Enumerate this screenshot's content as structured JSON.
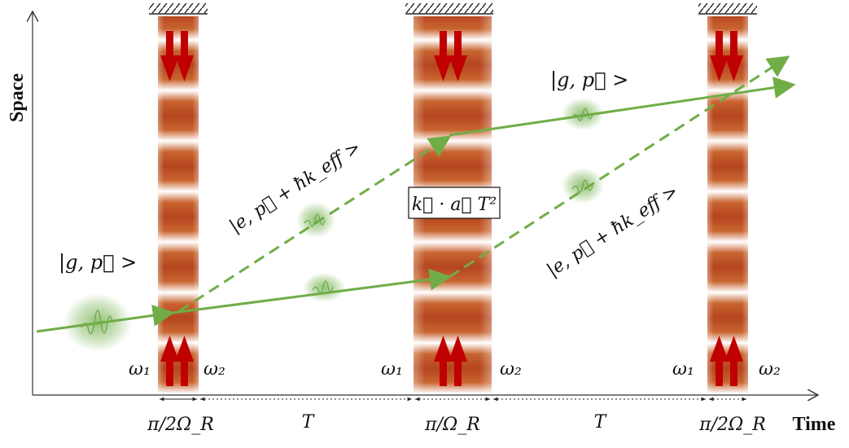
{
  "axes": {
    "y_label": "Space",
    "x_label": "Time"
  },
  "states": {
    "ground_left": "|g, p⃗ >",
    "excited_upper": "|e, p⃗ + ħk_eff >",
    "ground_right": "|g, p⃗ >",
    "excited_lower": "|e, p⃗ + ħk_eff >"
  },
  "phase_term": "k⃗ · a⃗ T²",
  "beam_labels": {
    "omega1": "ω₁",
    "omega2": "ω₂"
  },
  "durations": {
    "pulse1": "π/2Ω_R",
    "gap1": "T",
    "pulse2": "π/Ω_R",
    "gap2": "T",
    "pulse3": "π/2Ω_R"
  },
  "colors": {
    "beam_dark": "#b5451f",
    "arrow_red": "#c00000",
    "path_green": "#70ad47",
    "axis": "#333333"
  }
}
